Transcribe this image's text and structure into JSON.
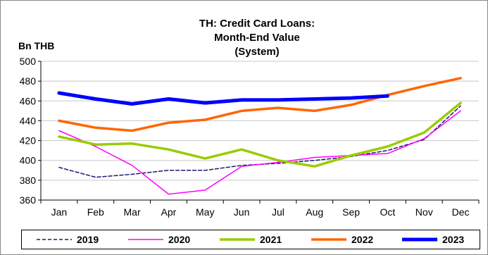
{
  "chart_data": {
    "type": "line",
    "title_lines": [
      "TH: Credit Card Loans:",
      "Month-End Value",
      "(System)"
    ],
    "ylabel": "Bn THB",
    "xlabel": "",
    "categories": [
      "Jan",
      "Feb",
      "Mar",
      "Apr",
      "May",
      "Jun",
      "Jul",
      "Aug",
      "Sep",
      "Oct",
      "Nov",
      "Dec"
    ],
    "ylim": [
      360,
      500
    ],
    "yticks": [
      360,
      380,
      400,
      420,
      440,
      460,
      480,
      500
    ],
    "grid": true,
    "legend": "bottom",
    "series": [
      {
        "name": "2019",
        "color": "#1a1a6e",
        "dash": "dashed",
        "values": [
          393,
          383,
          386,
          390,
          390,
          395,
          397,
          400,
          404,
          410,
          421,
          455
        ]
      },
      {
        "name": "2020",
        "color": "#ff00ff",
        "dash": "solid",
        "values": [
          430,
          414,
          395,
          366,
          370,
          394,
          398,
          403,
          405,
          407,
          422,
          450
        ]
      },
      {
        "name": "2021",
        "color": "#99cc00",
        "dash": "solid",
        "values": [
          424,
          416,
          417,
          411,
          402,
          411,
          400,
          394,
          405,
          414,
          428,
          458
        ]
      },
      {
        "name": "2022",
        "color": "#ff6600",
        "dash": "solid",
        "values": [
          440,
          433,
          430,
          438,
          441,
          450,
          453,
          450,
          456,
          466,
          475,
          483
        ]
      },
      {
        "name": "2023",
        "color": "#0000ff",
        "dash": "solid",
        "values": [
          468,
          462,
          457,
          462,
          458,
          461,
          461,
          462,
          463,
          465,
          null,
          null
        ]
      }
    ]
  }
}
